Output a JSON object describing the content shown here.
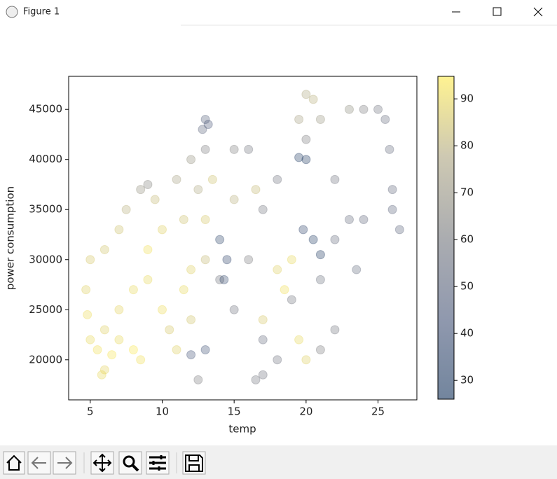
{
  "window": {
    "title": "Figure 1"
  },
  "chart_data": {
    "type": "scatter",
    "xlabel": "temp",
    "ylabel": "power consumption",
    "x": [
      5,
      5.5,
      6,
      4.8,
      6.5,
      7,
      8,
      8.5,
      6,
      5.8,
      4.7,
      5,
      6,
      7,
      7.5,
      8.5,
      9,
      9.5,
      10,
      9,
      10,
      11,
      10.5,
      12,
      11,
      12,
      13,
      12.5,
      11.5,
      13,
      14,
      15,
      16,
      17,
      18,
      16,
      15,
      17,
      18,
      19,
      21,
      22,
      23,
      24,
      22,
      20,
      21,
      19.5,
      20,
      20.5,
      23,
      24,
      25,
      25.5,
      25.8,
      26,
      26,
      26.5,
      23.5,
      22,
      21,
      16.5,
      17,
      12.5,
      14,
      14.5,
      14.3,
      13,
      12,
      20,
      19.5,
      20.5,
      21,
      19.8,
      13.2,
      13,
      12.8,
      18,
      19,
      18.5,
      19.5,
      20,
      11.5,
      12,
      13,
      13.5,
      15,
      16.5,
      17,
      9,
      8,
      7
    ],
    "values": [
      22000,
      21000,
      23000,
      24500,
      20500,
      22000,
      21000,
      20000,
      19000,
      18500,
      27000,
      30000,
      31000,
      33000,
      35000,
      37000,
      37500,
      36000,
      33000,
      28000,
      25000,
      21000,
      23000,
      24000,
      38000,
      40000,
      41000,
      37000,
      34000,
      30000,
      28000,
      25000,
      30000,
      35000,
      38000,
      41000,
      41000,
      22000,
      20000,
      26000,
      28000,
      32000,
      34000,
      34000,
      38000,
      42000,
      44000,
      44000,
      46500,
      46000,
      45000,
      45000,
      45000,
      44000,
      41000,
      37000,
      35000,
      33000,
      29000,
      23000,
      21000,
      18000,
      18500,
      18000,
      32000,
      30000,
      28000,
      21000,
      20500,
      40000,
      40200,
      32000,
      30500,
      33000,
      43500,
      44000,
      43000,
      29000,
      30000,
      27000,
      22000,
      20000,
      27000,
      29000,
      34000,
      38000,
      36000,
      37000,
      24000,
      31000,
      27000,
      25000
    ],
    "color_values": [
      90,
      92,
      88,
      91,
      93,
      90,
      94,
      92,
      89,
      90,
      88,
      86,
      85,
      84,
      80,
      70,
      65,
      82,
      88,
      90,
      91,
      88,
      86,
      85,
      75,
      70,
      62,
      78,
      84,
      82,
      60,
      58,
      62,
      60,
      58,
      60,
      63,
      55,
      58,
      60,
      57,
      55,
      55,
      52,
      58,
      62,
      72,
      75,
      78,
      80,
      68,
      62,
      58,
      55,
      55,
      52,
      50,
      50,
      54,
      60,
      62,
      60,
      58,
      62,
      35,
      33,
      38,
      40,
      42,
      28,
      30,
      30,
      28,
      34,
      45,
      48,
      50,
      88,
      90,
      92,
      90,
      88,
      90,
      88,
      86,
      84,
      80,
      82,
      86,
      92,
      90,
      89
    ],
    "xlim": [
      3.5,
      27.7
    ],
    "xticks": [
      5,
      10,
      15,
      20,
      25
    ],
    "ylim": [
      16000,
      48300
    ],
    "yticks": [
      20000,
      25000,
      30000,
      35000,
      40000,
      45000
    ],
    "clim": [
      26,
      94.8
    ],
    "cticks": [
      30,
      40,
      50,
      60,
      70,
      80,
      90
    ],
    "colormap": [
      "#00224e",
      "#35456c",
      "#666970",
      "#a59c74",
      "#fee838"
    ],
    "alpha": 0.3
  }
}
